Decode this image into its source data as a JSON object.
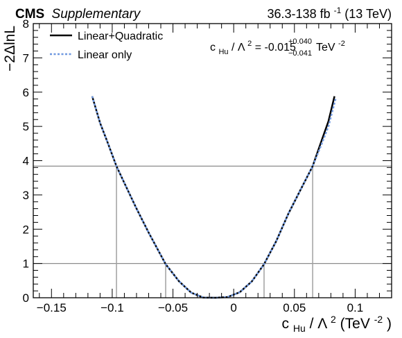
{
  "header": {
    "experiment": "CMS",
    "label": "Supplementary",
    "lumi_prefix": "36.3-138 fb",
    "lumi_exp": "-1",
    "lumi_suffix": " (13 TeV)"
  },
  "legend": {
    "placement": "top-left",
    "entries": [
      {
        "label": "Linear+Quadratic",
        "color": "#000000",
        "style": "solid"
      },
      {
        "label": "Linear only",
        "color": "#6f98e0",
        "style": "dashed"
      }
    ]
  },
  "result": {
    "param": "c",
    "param_sub": "Hu",
    "sep": " / ",
    "lambda": "Λ",
    "lambda_exp": "2",
    "eq": " = -0.015",
    "up": "+0.040",
    "down": "−0.041",
    "unit": " TeV",
    "unit_exp": "-2"
  },
  "axes": {
    "ylabel": "−2ΔlnL",
    "xlabel_param": "c",
    "xlabel_sub": "Hu",
    "xlabel_mid": " / Λ",
    "xlabel_sq": "2",
    "xlabel_unit": " (TeV",
    "xlabel_unit_exp": "-2",
    "xlabel_close": ")"
  },
  "chart_data": {
    "type": "line",
    "xlim": [
      -0.165,
      0.13
    ],
    "ylim": [
      0,
      8
    ],
    "x_ticks": [
      -0.15,
      -0.1,
      -0.05,
      0,
      0.05,
      0.1
    ],
    "x_tick_labels": [
      "−0.15",
      "−0.1",
      "−0.05",
      "0",
      "0.05",
      "0.1"
    ],
    "y_ticks": [
      0,
      1,
      2,
      3,
      4,
      5,
      6,
      7,
      8
    ],
    "y_tick_labels": [
      "0",
      "1",
      "2",
      "3",
      "4",
      "5",
      "6",
      "7",
      "8"
    ],
    "grid": false,
    "series": [
      {
        "name": "Linear+Quadratic",
        "color": "#000000",
        "dash": false,
        "x": [
          -0.1165,
          -0.11,
          -0.104,
          -0.0965,
          -0.09,
          -0.08,
          -0.07,
          -0.056,
          -0.045,
          -0.035,
          -0.025,
          -0.015,
          -0.005,
          0.005,
          0.015,
          0.025,
          0.035,
          0.045,
          0.055,
          0.065,
          0.072,
          0.078,
          0.083
        ],
        "y": [
          5.88,
          5.1,
          4.55,
          3.84,
          3.35,
          2.6,
          1.9,
          0.98,
          0.48,
          0.15,
          0.005,
          0.0,
          0.02,
          0.16,
          0.48,
          0.98,
          1.65,
          2.45,
          3.15,
          3.84,
          4.55,
          5.15,
          5.88
        ]
      },
      {
        "name": "Linear only",
        "color": "#6f98e0",
        "dash": true,
        "x": [
          -0.1165,
          -0.11,
          -0.104,
          -0.0965,
          -0.09,
          -0.08,
          -0.07,
          -0.056,
          -0.045,
          -0.035,
          -0.025,
          -0.015,
          -0.005,
          0.005,
          0.015,
          0.025,
          0.035,
          0.045,
          0.055,
          0.065,
          0.072,
          0.078,
          0.084
        ],
        "y": [
          5.88,
          5.1,
          4.55,
          3.84,
          3.35,
          2.6,
          1.9,
          0.98,
          0.48,
          0.15,
          0.005,
          0.0,
          0.02,
          0.16,
          0.48,
          0.98,
          1.65,
          2.45,
          3.15,
          3.84,
          4.45,
          5.0,
          5.82
        ]
      }
    ],
    "reference_lines": {
      "horizontal": [
        1.0,
        3.84
      ],
      "vertical": [
        {
          "x": -0.0965,
          "y": 3.84
        },
        {
          "x": -0.056,
          "y": 1.0
        },
        {
          "x": 0.025,
          "y": 1.0
        },
        {
          "x": 0.065,
          "y": 3.84
        }
      ]
    }
  }
}
